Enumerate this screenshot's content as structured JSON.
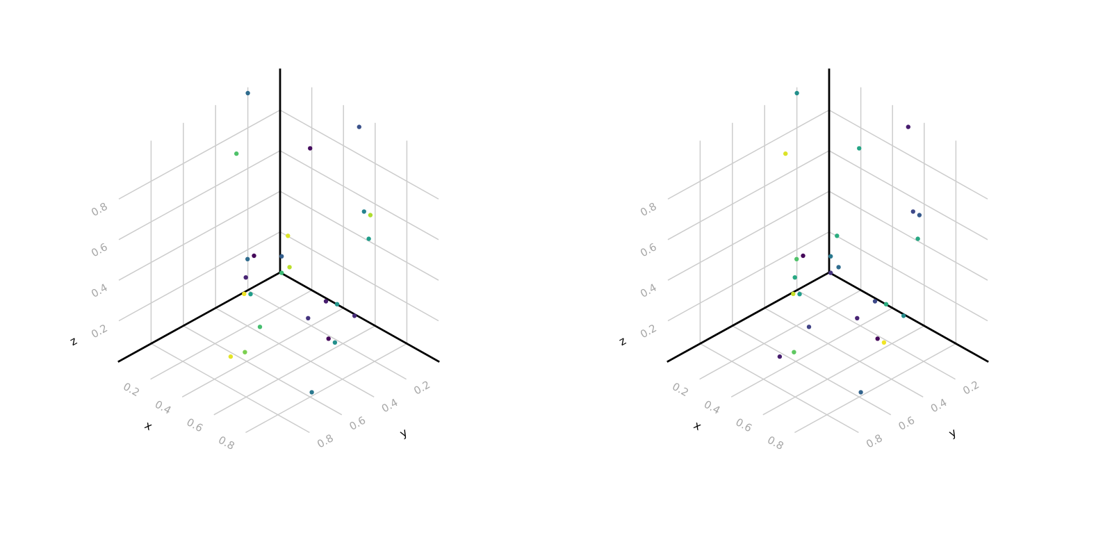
{
  "chart_data": [
    {
      "type": "scatter3d",
      "xlabel": "x",
      "ylabel": "y",
      "zlabel": "z",
      "xlim": [
        0,
        1
      ],
      "ylim": [
        0,
        1
      ],
      "zlim": [
        0,
        1
      ],
      "grid": true,
      "xticks": [
        "0.2",
        "0.4",
        "0.6",
        "0.8"
      ],
      "yticks": [
        "0.2",
        "0.4",
        "0.6",
        "0.8"
      ],
      "zticks": [
        "0.2",
        "0.4",
        "0.6",
        "0.8"
      ],
      "colormap": "viridis",
      "points": [
        {
          "x": 0.55,
          "y": 0.05,
          "z": 0.98,
          "c": 0.25
        },
        {
          "x": 0.01,
          "y": 0.21,
          "z": 0.98,
          "c": 0.35
        },
        {
          "x": 0.23,
          "y": 0.04,
          "z": 0.73,
          "c": 0.03
        },
        {
          "x": 0.03,
          "y": 0.3,
          "z": 0.73,
          "c": 0.72
        },
        {
          "x": 0.55,
          "y": 0.02,
          "z": 0.55,
          "c": 0.45
        },
        {
          "x": 0.59,
          "y": 0.02,
          "z": 0.55,
          "c": 0.88
        },
        {
          "x": 0.57,
          "y": 0.01,
          "z": 0.42,
          "c": 0.55
        },
        {
          "x": 0.07,
          "y": 0.02,
          "z": 0.22,
          "c": 0.95
        },
        {
          "x": 0.04,
          "y": 0.03,
          "z": 0.11,
          "c": 0.3
        },
        {
          "x": 0.11,
          "y": 0.31,
          "z": 0.25,
          "c": 0.35
        },
        {
          "x": 0.1,
          "y": 0.26,
          "z": 0.24,
          "c": 0.02
        },
        {
          "x": 0.03,
          "y": 0.02,
          "z": 0.02,
          "c": 0.68
        },
        {
          "x": 0.08,
          "y": 0.02,
          "z": 0.07,
          "c": 0.9
        },
        {
          "x": 0.14,
          "y": 0.35,
          "z": 0.19,
          "c": 0.1
        },
        {
          "x": 0.17,
          "y": 0.39,
          "z": 0.14,
          "c": 0.98
        },
        {
          "x": 0.18,
          "y": 0.36,
          "z": 0.13,
          "c": 0.55
        },
        {
          "x": 0.33,
          "y": 0.04,
          "z": 0.02,
          "c": 0.08
        },
        {
          "x": 0.37,
          "y": 0.01,
          "z": 0.01,
          "c": 0.52
        },
        {
          "x": 0.49,
          "y": 0.02,
          "z": 0.01,
          "c": 0.12
        },
        {
          "x": 0.37,
          "y": 0.19,
          "z": 0.02,
          "c": 0.15
        },
        {
          "x": 0.28,
          "y": 0.4,
          "z": 0.03,
          "c": 0.7
        },
        {
          "x": 0.55,
          "y": 0.24,
          "z": 0.02,
          "c": 0.02
        },
        {
          "x": 0.58,
          "y": 0.23,
          "z": 0.01,
          "c": 0.5
        },
        {
          "x": 0.48,
          "y": 0.69,
          "z": 0.12,
          "c": 0.8
        },
        {
          "x": 0.38,
          "y": 0.68,
          "z": 0.05,
          "c": 0.96
        },
        {
          "x": 0.79,
          "y": 0.58,
          "z": 0.01,
          "c": 0.4
        }
      ]
    },
    {
      "type": "scatter3d",
      "xlabel": "x",
      "ylabel": "y",
      "zlabel": "z",
      "xlim": [
        0,
        1
      ],
      "ylim": [
        0,
        1
      ],
      "zlim": [
        0,
        1
      ],
      "grid": true,
      "xticks": [
        "0.2",
        "0.4",
        "0.6",
        "0.8"
      ],
      "yticks": [
        "0.2",
        "0.4",
        "0.6",
        "0.8"
      ],
      "zticks": [
        "0.2",
        "0.4",
        "0.6",
        "0.8"
      ],
      "colormap": "viridis",
      "points": [
        {
          "x": 0.55,
          "y": 0.05,
          "z": 0.98,
          "c": 0.08
        },
        {
          "x": 0.01,
          "y": 0.21,
          "z": 0.98,
          "c": 0.5
        },
        {
          "x": 0.23,
          "y": 0.04,
          "z": 0.73,
          "c": 0.58
        },
        {
          "x": 0.03,
          "y": 0.3,
          "z": 0.73,
          "c": 0.95
        },
        {
          "x": 0.55,
          "y": 0.02,
          "z": 0.55,
          "c": 0.22
        },
        {
          "x": 0.59,
          "y": 0.02,
          "z": 0.55,
          "c": 0.28
        },
        {
          "x": 0.57,
          "y": 0.01,
          "z": 0.42,
          "c": 0.6
        },
        {
          "x": 0.07,
          "y": 0.02,
          "z": 0.22,
          "c": 0.62
        },
        {
          "x": 0.04,
          "y": 0.03,
          "z": 0.11,
          "c": 0.4
        },
        {
          "x": 0.11,
          "y": 0.31,
          "z": 0.25,
          "c": 0.72
        },
        {
          "x": 0.1,
          "y": 0.26,
          "z": 0.24,
          "c": 0.02
        },
        {
          "x": 0.03,
          "y": 0.02,
          "z": 0.02,
          "c": 0.15
        },
        {
          "x": 0.08,
          "y": 0.02,
          "z": 0.07,
          "c": 0.35
        },
        {
          "x": 0.14,
          "y": 0.35,
          "z": 0.19,
          "c": 0.6
        },
        {
          "x": 0.17,
          "y": 0.39,
          "z": 0.14,
          "c": 0.92
        },
        {
          "x": 0.18,
          "y": 0.36,
          "z": 0.13,
          "c": 0.55
        },
        {
          "x": 0.33,
          "y": 0.04,
          "z": 0.02,
          "c": 0.22
        },
        {
          "x": 0.37,
          "y": 0.01,
          "z": 0.01,
          "c": 0.62
        },
        {
          "x": 0.49,
          "y": 0.02,
          "z": 0.01,
          "c": 0.48
        },
        {
          "x": 0.37,
          "y": 0.19,
          "z": 0.02,
          "c": 0.1
        },
        {
          "x": 0.28,
          "y": 0.4,
          "z": 0.03,
          "c": 0.2
        },
        {
          "x": 0.55,
          "y": 0.24,
          "z": 0.02,
          "c": 0.02
        },
        {
          "x": 0.58,
          "y": 0.23,
          "z": 0.01,
          "c": 0.98
        },
        {
          "x": 0.48,
          "y": 0.69,
          "z": 0.12,
          "c": 0.75
        },
        {
          "x": 0.38,
          "y": 0.68,
          "z": 0.05,
          "c": 0.08
        },
        {
          "x": 0.79,
          "y": 0.58,
          "z": 0.01,
          "c": 0.32
        }
      ]
    }
  ]
}
